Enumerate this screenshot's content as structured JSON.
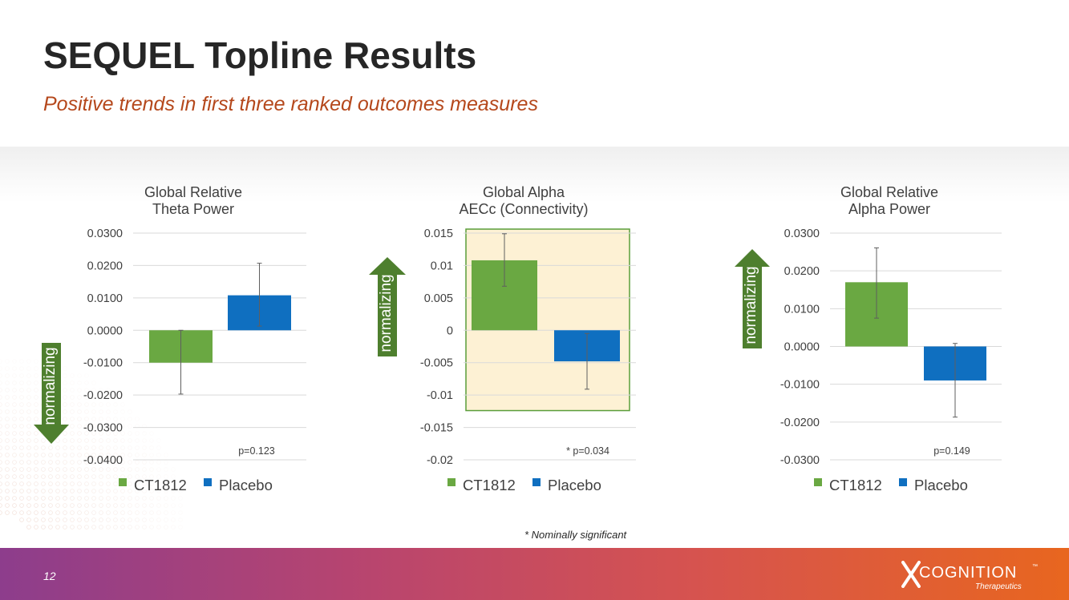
{
  "slide": {
    "title": "SEQUEL Topline Results",
    "subtitle": "Positive trends in first three ranked outcomes measures",
    "footnote": "* Nominally significant",
    "page_number": "12"
  },
  "logo": {
    "name": "COGNITION",
    "tm": "™",
    "sub": "Therapeutics"
  },
  "arrows": [
    {
      "label": "normalizing",
      "direction": "down",
      "color": "#4e7f2e"
    },
    {
      "label": "normalizing",
      "direction": "up",
      "color": "#4e7f2e"
    },
    {
      "label": "normalizing",
      "direction": "up",
      "color": "#4e7f2e"
    }
  ],
  "colors": {
    "ct1812": "#6aa842",
    "placebo": "#0f6fc0",
    "highlight_fill": "#fdf1d4",
    "highlight_border": "#5a9e3a",
    "axis_text": "#404040",
    "grid": "#d9d9d9",
    "error_bar": "#5f5f5f"
  },
  "chart_data": [
    {
      "type": "bar",
      "title": "Global Relative\nTheta Power",
      "categories": [
        "CT1812",
        "Placebo"
      ],
      "values": [
        -0.01,
        0.0108
      ],
      "error_low": [
        -0.0197,
        0.0013
      ],
      "error_high": [
        0.0,
        0.0207
      ],
      "ylim": [
        -0.04,
        0.03
      ],
      "ticks": [
        0.03,
        0.02,
        0.01,
        0.0,
        -0.01,
        -0.02,
        -0.03,
        -0.04
      ],
      "tick_labels": [
        "0.0300",
        "0.0200",
        "0.0100",
        "0.0000",
        "-0.0100",
        "-0.0200",
        "-0.0300",
        "-0.0400"
      ],
      "annotation": "p=0.123",
      "legend": [
        "CT1812",
        "Placebo"
      ],
      "highlight": false,
      "xlabel": "",
      "ylabel": ""
    },
    {
      "type": "bar",
      "title": "Global Alpha\nAECc (Connectivity)",
      "categories": [
        "CT1812",
        "Placebo"
      ],
      "values": [
        0.0108,
        -0.0048
      ],
      "error_low": [
        0.0068,
        -0.0091
      ],
      "error_high": [
        0.0149,
        -0.0005
      ],
      "ylim": [
        -0.02,
        0.015
      ],
      "ticks": [
        0.015,
        0.01,
        0.005,
        0,
        -0.005,
        -0.01,
        -0.015,
        -0.02
      ],
      "tick_labels": [
        "0.015",
        "0.01",
        "0.005",
        "0",
        "-0.005",
        "-0.01",
        "-0.015",
        "-0.02"
      ],
      "annotation": "* p=0.034",
      "legend": [
        "CT1812",
        "Placebo"
      ],
      "highlight": true,
      "xlabel": "",
      "ylabel": ""
    },
    {
      "type": "bar",
      "title": "Global Relative\nAlpha Power",
      "categories": [
        "CT1812",
        "Placebo"
      ],
      "values": [
        0.017,
        -0.009
      ],
      "error_low": [
        0.0075,
        -0.0187
      ],
      "error_high": [
        0.0261,
        0.0008
      ],
      "ylim": [
        -0.03,
        0.03
      ],
      "ticks": [
        0.03,
        0.02,
        0.01,
        0.0,
        -0.01,
        -0.02,
        -0.03
      ],
      "tick_labels": [
        "0.0300",
        "0.0200",
        "0.0100",
        "0.0000",
        "-0.0100",
        "-0.0200",
        "-0.0300"
      ],
      "annotation": "p=0.149",
      "legend": [
        "CT1812",
        "Placebo"
      ],
      "highlight": false,
      "xlabel": "",
      "ylabel": ""
    }
  ]
}
